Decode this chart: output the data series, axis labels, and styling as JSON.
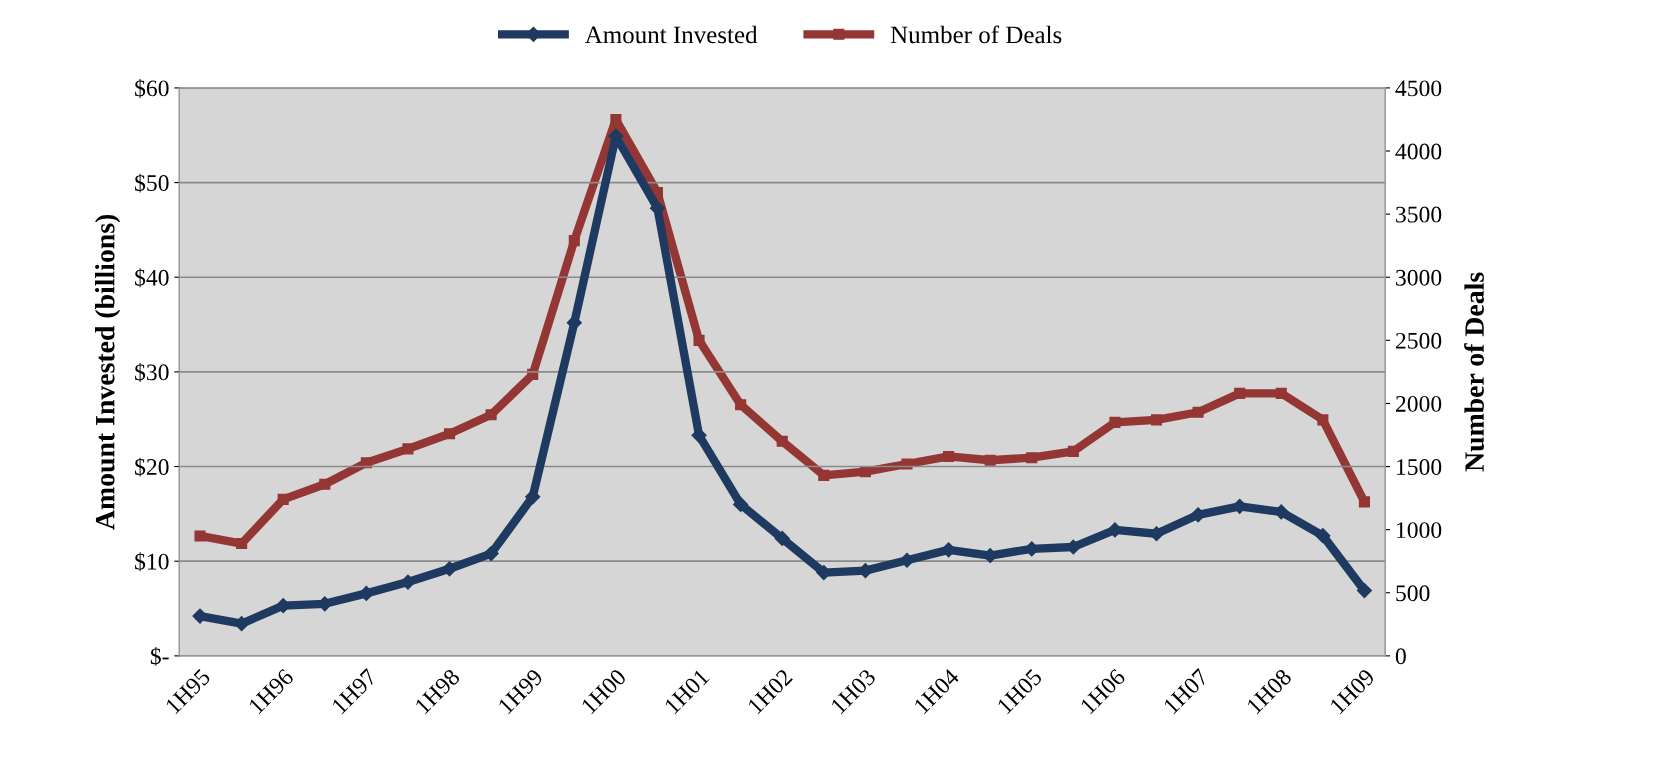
{
  "chart_data": {
    "type": "line",
    "ylabel": "Amount Invested (billions)",
    "y2label": "Number of Deals",
    "categories": [
      "1H95",
      null,
      "1H96",
      null,
      "1H97",
      null,
      "1H98",
      null,
      "1H99",
      null,
      "1H00",
      null,
      "1H01",
      null,
      "1H02",
      null,
      "1H03",
      null,
      "1H04",
      null,
      "1H05",
      null,
      "1H06",
      null,
      "1H07",
      null,
      "1H08",
      null,
      "1H09"
    ],
    "series": [
      {
        "name": "Amount Invested",
        "color": "#1f3a60",
        "marker": "diamond",
        "values": [
          4.2,
          3.4,
          5.3,
          5.5,
          6.6,
          7.8,
          9.2,
          10.8,
          16.8,
          35.2,
          54.9,
          47.3,
          23.3,
          16.0,
          12.4,
          8.8,
          9.0,
          10.1,
          11.2,
          10.6,
          11.3,
          11.5,
          13.3,
          12.9,
          14.9,
          15.8,
          15.2,
          12.7,
          6.9
        ]
      },
      {
        "name": "Number of Deals",
        "color": "#943634",
        "marker": "square",
        "axis": "y2",
        "values": [
          950,
          890,
          1240,
          1360,
          1530,
          1640,
          1760,
          1910,
          2230,
          3290,
          4250,
          3670,
          2500,
          1990,
          1700,
          1430,
          1460,
          1520,
          1580,
          1550,
          1570,
          1620,
          1850,
          1870,
          1930,
          2080,
          2080,
          1870,
          1220
        ]
      }
    ],
    "ylim": [
      0,
      60
    ],
    "yticks": [
      {
        "value": 0,
        "label": "$-"
      },
      {
        "value": 10,
        "label": "$10"
      },
      {
        "value": 20,
        "label": "$20"
      },
      {
        "value": 30,
        "label": "$30"
      },
      {
        "value": 40,
        "label": "$40"
      },
      {
        "value": 50,
        "label": "$50"
      },
      {
        "value": 60,
        "label": "$60"
      }
    ],
    "y2lim": [
      0,
      4500
    ],
    "y2ticks": [
      0,
      500,
      1000,
      1500,
      2000,
      2500,
      3000,
      3500,
      4000,
      4500
    ],
    "grid": "y",
    "legend": "top",
    "line_style": "solid"
  }
}
